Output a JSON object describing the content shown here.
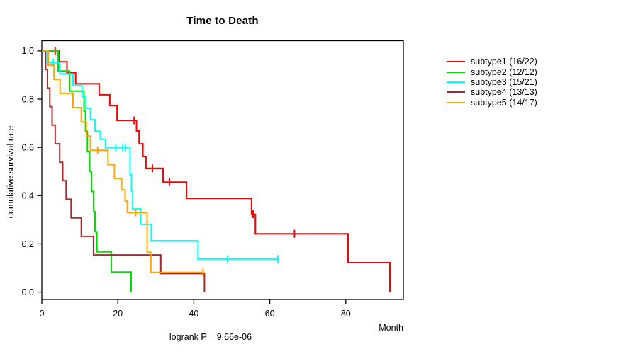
{
  "chart_data": {
    "type": "line",
    "subtype": "kaplan-meier-step-survival",
    "title": "Time to Death",
    "xlabel": "Month",
    "ylabel": "cumulative survival rate",
    "annotation": "logrank P = 9.66e-06",
    "xlim": [
      0,
      95
    ],
    "ylim": [
      0,
      1
    ],
    "x_ticks": [
      0,
      20,
      40,
      60,
      80
    ],
    "y_ticks": [
      0.0,
      0.2,
      0.4,
      0.6,
      0.8,
      1.0
    ],
    "grid": false,
    "legend_position": "right-outside",
    "series": [
      {
        "name": "subtype1 (16/22)",
        "color": "#ff0000",
        "steps": [
          [
            0,
            1.0
          ],
          [
            4.5,
            0.955
          ],
          [
            6.6,
            0.909
          ],
          [
            8.9,
            0.864
          ],
          [
            15.1,
            0.818
          ],
          [
            17.9,
            0.773
          ],
          [
            19.8,
            0.712
          ],
          [
            24.9,
            0.668
          ],
          [
            25.6,
            0.615
          ],
          [
            26.6,
            0.562
          ],
          [
            27.4,
            0.513
          ],
          [
            31.9,
            0.456
          ],
          [
            38.1,
            0.389
          ],
          [
            55.2,
            0.323
          ],
          [
            56.2,
            0.242
          ],
          [
            80.6,
            0.122
          ],
          [
            91.6,
            0.0
          ]
        ],
        "censor_marks": [
          [
            3.5,
            1.0
          ],
          [
            24.3,
            0.712
          ],
          [
            29.1,
            0.513
          ],
          [
            33.6,
            0.456
          ],
          [
            55.6,
            0.323
          ],
          [
            66.5,
            0.242
          ]
        ],
        "end_time": 91.6
      },
      {
        "name": "subtype2 (12/12)",
        "color": "#00e000",
        "steps": [
          [
            0,
            1.0
          ],
          [
            4.3,
            0.917
          ],
          [
            7.3,
            0.833
          ],
          [
            11.1,
            0.75
          ],
          [
            11.5,
            0.667
          ],
          [
            12.0,
            0.583
          ],
          [
            12.6,
            0.5
          ],
          [
            13.1,
            0.417
          ],
          [
            13.6,
            0.333
          ],
          [
            14.0,
            0.25
          ],
          [
            14.5,
            0.167
          ],
          [
            18.3,
            0.083
          ],
          [
            23.5,
            0.0
          ]
        ],
        "censor_marks": [],
        "end_time": 23.5
      },
      {
        "name": "subtype3 (15/21)",
        "color": "#00ffff",
        "steps": [
          [
            0,
            1.0
          ],
          [
            1.5,
            0.952
          ],
          [
            4.7,
            0.905
          ],
          [
            8.2,
            0.857
          ],
          [
            10.6,
            0.81
          ],
          [
            11.6,
            0.762
          ],
          [
            12.8,
            0.714
          ],
          [
            14.0,
            0.667
          ],
          [
            15.4,
            0.633
          ],
          [
            16.8,
            0.6
          ],
          [
            23.2,
            0.487
          ],
          [
            23.6,
            0.419
          ],
          [
            23.9,
            0.345
          ],
          [
            26.0,
            0.281
          ],
          [
            28.8,
            0.213
          ],
          [
            41.1,
            0.137
          ]
        ],
        "censor_marks": [
          [
            3.0,
            0.952
          ],
          [
            19.5,
            0.6
          ],
          [
            21.3,
            0.6
          ],
          [
            22.0,
            0.6
          ],
          [
            48.9,
            0.137
          ],
          [
            62.1,
            0.137
          ]
        ],
        "end_time": 62.3
      },
      {
        "name": "subtype4 (13/13)",
        "color": "#a52a2a",
        "steps": [
          [
            0,
            1.0
          ],
          [
            1.0,
            0.923
          ],
          [
            1.5,
            0.846
          ],
          [
            2.1,
            0.769
          ],
          [
            2.7,
            0.692
          ],
          [
            3.5,
            0.615
          ],
          [
            4.7,
            0.538
          ],
          [
            5.5,
            0.462
          ],
          [
            6.4,
            0.385
          ],
          [
            7.7,
            0.308
          ],
          [
            10.4,
            0.231
          ],
          [
            13.6,
            0.154
          ],
          [
            31.3,
            0.077
          ],
          [
            42.8,
            0.0
          ]
        ],
        "censor_marks": [],
        "end_time": 42.8
      },
      {
        "name": "subtype5 (14/17)",
        "color": "#ffa500",
        "steps": [
          [
            0,
            1.0
          ],
          [
            1.7,
            0.941
          ],
          [
            3.2,
            0.882
          ],
          [
            4.8,
            0.824
          ],
          [
            8.2,
            0.765
          ],
          [
            10.4,
            0.706
          ],
          [
            11.7,
            0.647
          ],
          [
            12.8,
            0.588
          ],
          [
            17.4,
            0.529
          ],
          [
            19.1,
            0.471
          ],
          [
            21.0,
            0.424
          ],
          [
            21.9,
            0.377
          ],
          [
            22.5,
            0.33
          ],
          [
            27.7,
            0.165
          ],
          [
            28.7,
            0.082
          ]
        ],
        "censor_marks": [
          [
            14.7,
            0.588
          ],
          [
            24.7,
            0.33
          ],
          [
            42.4,
            0.082
          ]
        ],
        "end_time": 42.8
      }
    ]
  }
}
